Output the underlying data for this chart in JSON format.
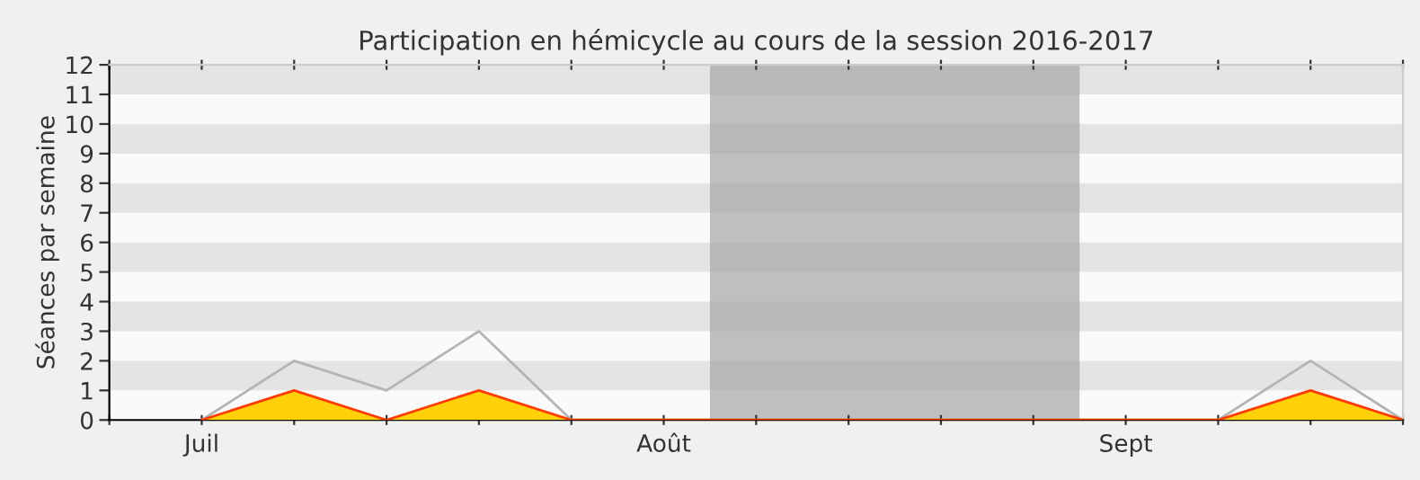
{
  "chart_data": {
    "type": "line",
    "title": "Participation en hémicycle au cours de la session 2016-2017",
    "ylabel": "Séances par semaine",
    "categories": [
      null,
      "Juil",
      null,
      null,
      null,
      null,
      "Août",
      null,
      null,
      null,
      null,
      "Sept",
      null,
      null,
      null
    ],
    "series": [
      {
        "color": "#b4b4b4",
        "values": [
          null,
          0,
          2,
          1,
          3,
          0,
          0,
          0,
          0,
          0,
          0,
          0,
          0,
          2,
          0
        ]
      },
      {
        "type": "area",
        "color": "#ffd10a",
        "values": [
          null,
          0,
          1,
          0,
          1,
          0,
          0,
          0,
          0,
          0,
          0,
          0,
          0,
          1,
          0
        ]
      }
    ],
    "ylim": [
      0,
      12
    ],
    "yticks": [
      0,
      1,
      2,
      3,
      4,
      5,
      6,
      7,
      8,
      9,
      10,
      11,
      12
    ]
  }
}
